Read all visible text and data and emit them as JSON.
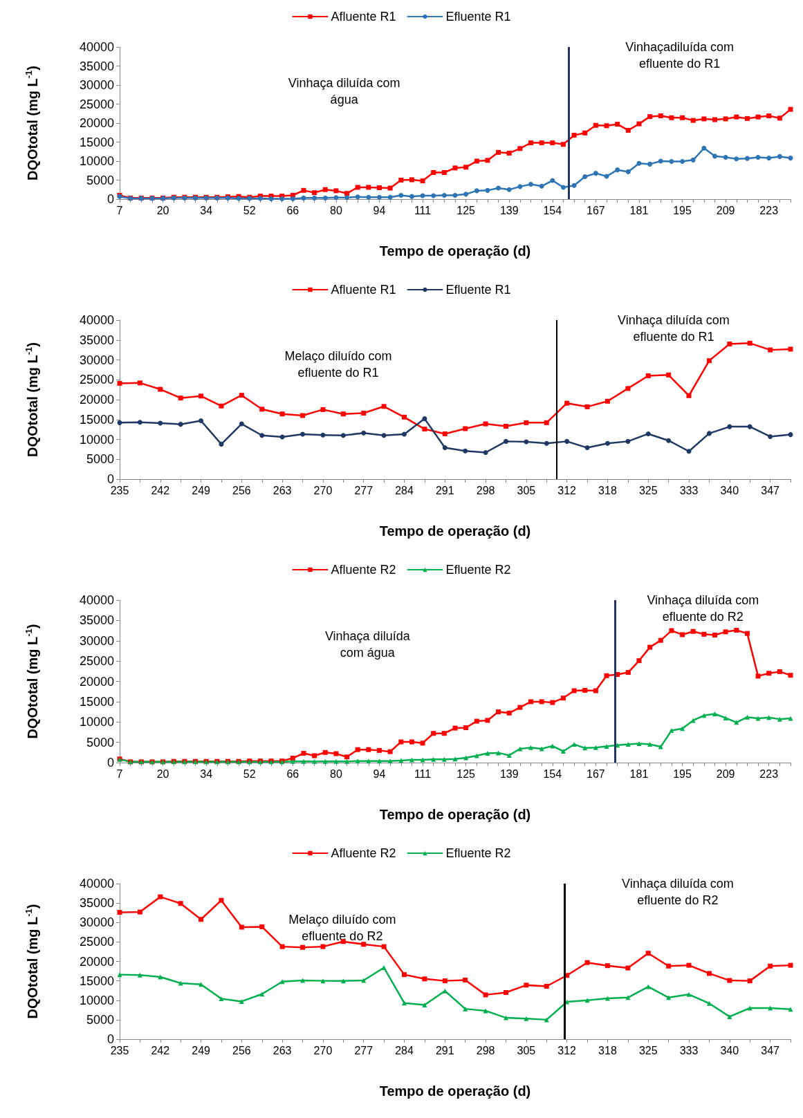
{
  "chart_data": [
    {
      "type": "line",
      "xlabel": "Tempo de operação (d)",
      "ylabel": "DQOtotal (mg L$^{-1}$)",
      "categories": [
        "7",
        null,
        null,
        null,
        "20",
        null,
        null,
        null,
        "34",
        null,
        null,
        null,
        "52",
        null,
        null,
        null,
        "66",
        null,
        null,
        null,
        "80",
        null,
        null,
        null,
        "94",
        null,
        null,
        null,
        "111",
        null,
        null,
        null,
        "125",
        null,
        null,
        null,
        "139",
        null,
        null,
        null,
        "154",
        null,
        null,
        null,
        "167",
        null,
        null,
        null,
        "181",
        null,
        null,
        null,
        "195",
        null,
        null,
        null,
        "209",
        null,
        null,
        null,
        "223",
        null,
        null
      ],
      "ylim": [
        0,
        40000
      ],
      "yticks": [
        0,
        5000,
        10000,
        15000,
        20000,
        25000,
        30000,
        35000,
        40000
      ],
      "grid": false,
      "legend": "top",
      "line_style": "solid",
      "series": [
        {
          "name": "Afluente R1",
          "color": "#ff0000",
          "marker": "square",
          "values": [
            1000,
            300,
            300,
            300,
            300,
            500,
            500,
            500,
            500,
            500,
            600,
            700,
            500,
            800,
            800,
            800,
            1000,
            2300,
            1700,
            2500,
            2200,
            1500,
            3100,
            3100,
            3000,
            2900,
            5000,
            5100,
            4800,
            7000,
            7000,
            8200,
            8400,
            10000,
            10200,
            12300,
            12100,
            13300,
            14800,
            14800,
            14800,
            14400,
            16800,
            17400,
            19400,
            19300,
            19700,
            18100,
            19800,
            21700,
            21900,
            21400,
            21400,
            20700,
            21100,
            20900,
            21100,
            21600,
            21200,
            21600,
            21900,
            21300,
            23600
          ]
        },
        {
          "name": "Efluente R1",
          "color": "#2e75b6",
          "marker": "circle",
          "values": [
            700,
            200,
            200,
            200,
            200,
            300,
            300,
            300,
            300,
            300,
            300,
            200,
            200,
            200,
            100,
            100,
            100,
            300,
            300,
            300,
            400,
            400,
            600,
            500,
            500,
            500,
            1000,
            700,
            900,
            900,
            1000,
            1000,
            1300,
            2200,
            2300,
            2900,
            2500,
            3300,
            3900,
            3400,
            4900,
            3100,
            3600,
            5900,
            6800,
            6000,
            7700,
            7200,
            9400,
            9200,
            10000,
            9900,
            9900,
            10300,
            13400,
            11300,
            11000,
            10600,
            10700,
            11000,
            10800,
            11200,
            10800
          ]
        }
      ],
      "annotations": [
        "Vinhaça diluída com\nágua",
        "Vinhaçadiluída com\nefluente do R1"
      ]
    },
    {
      "type": "line",
      "xlabel": "Tempo de operação (d)",
      "ylabel": "DQOtotal (mg L$^{-1}$)",
      "categories": [
        "235",
        null,
        "242",
        null,
        "249",
        null,
        "256",
        null,
        "263",
        null,
        "270",
        null,
        "277",
        null,
        "284",
        null,
        "291",
        null,
        "298",
        null,
        "305",
        null,
        "312",
        null,
        "318",
        null,
        "325",
        null,
        "333",
        null,
        "340",
        null,
        "347",
        null
      ],
      "ylim": [
        0,
        40000
      ],
      "yticks": [
        0,
        5000,
        10000,
        15000,
        20000,
        25000,
        30000,
        35000,
        40000
      ],
      "grid": false,
      "legend": "top",
      "line_style": "solid",
      "series": [
        {
          "name": "Afluente R1",
          "color": "#ff0000",
          "marker": "square",
          "values": [
            24100,
            24200,
            22600,
            20400,
            20900,
            18400,
            21100,
            17600,
            16400,
            16000,
            17500,
            16400,
            16600,
            18300,
            15600,
            12600,
            11400,
            12700,
            13900,
            13300,
            14200,
            14200,
            19100,
            18200,
            19600,
            22800,
            26000,
            26200,
            21000,
            29800,
            34000,
            34200,
            32500,
            32700
          ]
        },
        {
          "name": "Efluente R1",
          "color": "#1f3864",
          "marker": "circle",
          "values": [
            14200,
            14300,
            14100,
            13800,
            14700,
            8800,
            13900,
            11000,
            10600,
            11300,
            11100,
            11000,
            11600,
            11000,
            11300,
            15200,
            7900,
            7100,
            6700,
            9500,
            9400,
            9000,
            9500,
            7900,
            9000,
            9500,
            11400,
            9700,
            7000,
            11500,
            13200,
            13200,
            10700,
            11200
          ]
        }
      ],
      "annotations": [
        "Melaço diluído com\nefluente do R1",
        "Vinhaça diluída com\nefluente do R1"
      ]
    },
    {
      "type": "line",
      "xlabel": "Tempo de operação (d)",
      "ylabel": "DQOtotal (mg L$^{-1}$)",
      "categories": [
        "7",
        null,
        null,
        null,
        "20",
        null,
        null,
        null,
        "34",
        null,
        null,
        null,
        "52",
        null,
        null,
        null,
        "66",
        null,
        null,
        null,
        "80",
        null,
        null,
        null,
        "94",
        null,
        null,
        null,
        "111",
        null,
        null,
        null,
        "125",
        null,
        null,
        null,
        "139",
        null,
        null,
        null,
        "154",
        null,
        null,
        null,
        "167",
        null,
        null,
        null,
        "181",
        null,
        null,
        null,
        "195",
        null,
        null,
        null,
        "209",
        null,
        null,
        null,
        "223",
        null,
        null
      ],
      "ylim": [
        0,
        40000
      ],
      "yticks": [
        0,
        5000,
        10000,
        15000,
        20000,
        25000,
        30000,
        35000,
        40000
      ],
      "grid": false,
      "legend": "top",
      "line_style": "solid",
      "series": [
        {
          "name": "Afluente R2",
          "color": "#ff0000",
          "marker": "square",
          "values": [
            900,
            200,
            200,
            200,
            200,
            300,
            300,
            300,
            300,
            300,
            300,
            300,
            400,
            400,
            400,
            400,
            1100,
            2300,
            1700,
            2500,
            2200,
            1400,
            3200,
            3200,
            3000,
            2700,
            5100,
            5100,
            4800,
            7200,
            7200,
            8500,
            8600,
            10200,
            10400,
            12500,
            12200,
            13600,
            15000,
            15000,
            14800,
            15900,
            17700,
            17800,
            17700,
            21400,
            21700,
            22200,
            25100,
            28400,
            30100,
            32500,
            31500,
            32300,
            31600,
            31400,
            32200,
            32600,
            31800,
            21300,
            22000,
            22400,
            21500
          ]
        },
        {
          "name": "Efluente R2",
          "color": "#00b050",
          "marker": "triangle",
          "values": [
            800,
            200,
            200,
            200,
            200,
            200,
            200,
            200,
            200,
            200,
            200,
            200,
            200,
            200,
            200,
            200,
            300,
            300,
            300,
            300,
            300,
            300,
            400,
            400,
            400,
            400,
            500,
            700,
            700,
            800,
            800,
            900,
            1200,
            1700,
            2300,
            2400,
            1800,
            3400,
            3700,
            3400,
            4100,
            2800,
            4500,
            3600,
            3700,
            4000,
            4300,
            4500,
            4700,
            4500,
            3900,
            7900,
            8400,
            10400,
            11600,
            12000,
            11000,
            9900,
            11200,
            10900,
            11100,
            10700,
            10900
          ]
        }
      ],
      "annotations": [
        "Vinhaça diluída\ncom água",
        "Vinhaça diluída com\nefluente do R2"
      ]
    },
    {
      "type": "line",
      "xlabel": "Tempo de operação (d)",
      "ylabel": "DQOtotal (mg L$^{-1}$)",
      "categories": [
        "235",
        null,
        "242",
        null,
        "249",
        null,
        "256",
        null,
        "263",
        null,
        "270",
        null,
        "277",
        null,
        "284",
        null,
        "291",
        null,
        "298",
        null,
        "305",
        null,
        "312",
        null,
        "318",
        null,
        "325",
        null,
        "333",
        null,
        "340",
        null,
        "347",
        null
      ],
      "ylim": [
        0,
        40000
      ],
      "yticks": [
        0,
        5000,
        10000,
        15000,
        20000,
        25000,
        30000,
        35000,
        40000
      ],
      "grid": false,
      "legend": "top",
      "line_style": "solid",
      "series": [
        {
          "name": "Afluente R2",
          "color": "#ff0000",
          "marker": "square",
          "values": [
            32600,
            32700,
            36600,
            34900,
            30800,
            35700,
            28800,
            28900,
            23800,
            23600,
            23800,
            25100,
            24400,
            23800,
            16600,
            15500,
            15000,
            15200,
            11400,
            12000,
            13900,
            13600,
            16400,
            19700,
            18900,
            18300,
            22100,
            18800,
            19000,
            16900,
            15100,
            15000,
            18800,
            19000
          ]
        },
        {
          "name": "Efluente R2",
          "color": "#00b050",
          "marker": "triangle",
          "values": [
            16600,
            16500,
            16000,
            14400,
            14100,
            10400,
            9700,
            11600,
            14800,
            15100,
            15000,
            15000,
            15100,
            18400,
            9300,
            8800,
            12400,
            7800,
            7300,
            5500,
            5300,
            5000,
            9600,
            10000,
            10500,
            10700,
            13500,
            10700,
            11500,
            9200,
            5800,
            8000,
            8000,
            7700
          ]
        }
      ],
      "annotations": [
        "Melaço diluído com\nefluente do R2",
        "Vinhaça diluída com\nefluente do R2"
      ]
    }
  ]
}
